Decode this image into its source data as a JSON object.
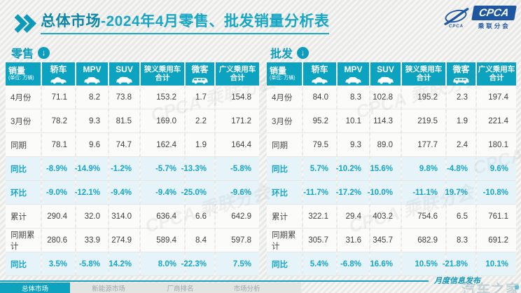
{
  "title": {
    "prefix": "总体市场",
    "rest": "-2024年4月零售、批发销量分析表"
  },
  "logo": {
    "brand": "CPCA",
    "brand_sub": "乘联分会",
    "swoosh_label": "CPCA"
  },
  "icons": {
    "section_arrow": "↓"
  },
  "watermark_text": "CPCA 乘联分会",
  "columns": [
    {
      "key": "sales",
      "label": "销量",
      "sub": "(单位: 万辆)"
    },
    {
      "key": "sedan",
      "label": "轿车",
      "icon": "sedan-car-icon"
    },
    {
      "key": "mpv",
      "label": "MPV",
      "icon": "mpv-car-icon"
    },
    {
      "key": "suv",
      "label": "SUV",
      "icon": "suv-car-icon"
    },
    {
      "key": "narrow-total",
      "lines": [
        "狭义乘用车",
        "合计"
      ]
    },
    {
      "key": "minibus",
      "label": "微客",
      "icon": "minibus-car-icon"
    },
    {
      "key": "broad-total",
      "lines": [
        "广义乘用车",
        "合计"
      ]
    }
  ],
  "tables": [
    {
      "name": "零售",
      "rows": [
        {
          "label": "4月份",
          "highlight": false,
          "values": [
            "71.1",
            "8.2",
            "73.8",
            "153.2",
            "1.7",
            "154.8"
          ]
        },
        {
          "label": "3月份",
          "highlight": false,
          "values": [
            "78.2",
            "9.3",
            "81.5",
            "169.0",
            "2.2",
            "171.2"
          ]
        },
        {
          "label": "同期",
          "highlight": false,
          "values": [
            "78.1",
            "9.6",
            "74.7",
            "162.4",
            "1.9",
            "164.4"
          ]
        },
        {
          "label": "同比",
          "highlight": true,
          "values": [
            "-8.9%",
            "-14.9%",
            "-1.2%",
            "-5.7%",
            "-13.3%",
            "-5.8%"
          ]
        },
        {
          "label": "环比",
          "highlight": true,
          "values": [
            "-9.0%",
            "-12.1%",
            "-9.4%",
            "-9.4%",
            "-25.0%",
            "-9.6%"
          ]
        },
        {
          "label": "累计",
          "highlight": false,
          "values": [
            "290.4",
            "32.0",
            "314.0",
            "636.4",
            "6.6",
            "642.9"
          ]
        },
        {
          "label": "同期累计",
          "highlight": false,
          "values": [
            "280.6",
            "33.9",
            "274.9",
            "589.4",
            "8.4",
            "597.8"
          ]
        },
        {
          "label": "同比",
          "highlight": true,
          "values": [
            "3.5%",
            "-5.8%",
            "14.2%",
            "8.0%",
            "-22.3%",
            "7.5%"
          ]
        }
      ]
    },
    {
      "name": "批发",
      "rows": [
        {
          "label": "4月份",
          "highlight": false,
          "values": [
            "84.0",
            "8.3",
            "102.8",
            "195.2",
            "2.3",
            "197.4"
          ]
        },
        {
          "label": "3月份",
          "highlight": false,
          "values": [
            "95.2",
            "10.1",
            "114.3",
            "219.5",
            "1.9",
            "221.4"
          ]
        },
        {
          "label": "同期",
          "highlight": false,
          "values": [
            "79.5",
            "9.3",
            "89.0",
            "177.7",
            "2.4",
            "180.1"
          ]
        },
        {
          "label": "同比",
          "highlight": true,
          "values": [
            "5.7%",
            "-10.2%",
            "15.6%",
            "9.8%",
            "-4.8%",
            "9.6%"
          ]
        },
        {
          "label": "环比",
          "highlight": true,
          "values": [
            "-11.7%",
            "-17.2%",
            "-10.0%",
            "-11.1%",
            "19.7%",
            "-10.8%"
          ]
        },
        {
          "label": "累计",
          "highlight": false,
          "values": [
            "322.1",
            "29.4",
            "403.2",
            "754.6",
            "6.5",
            "761.1"
          ]
        },
        {
          "label": "同期累计",
          "highlight": false,
          "values": [
            "305.7",
            "31.6",
            "345.7",
            "682.9",
            "8.3",
            "691.2"
          ]
        },
        {
          "label": "同比",
          "highlight": true,
          "values": [
            "5.4%",
            "-6.8%",
            "16.6%",
            "10.5%",
            "-21.8%",
            "10.1%"
          ]
        }
      ]
    }
  ],
  "footer": {
    "tabs": [
      {
        "label": "总体市场",
        "active": true
      },
      {
        "label": "新能源市场",
        "active": false
      },
      {
        "label": "厂商排名",
        "active": false
      },
      {
        "label": "市场分析",
        "active": false
      }
    ],
    "note": "月度信息发布",
    "watermark": "汽车之家"
  },
  "colors": {
    "teal": "#0ba3c0",
    "teal_dark": "#0b86a6",
    "highlight_bg": "#e6f3f9",
    "logo_blue": "#1e56a0"
  }
}
